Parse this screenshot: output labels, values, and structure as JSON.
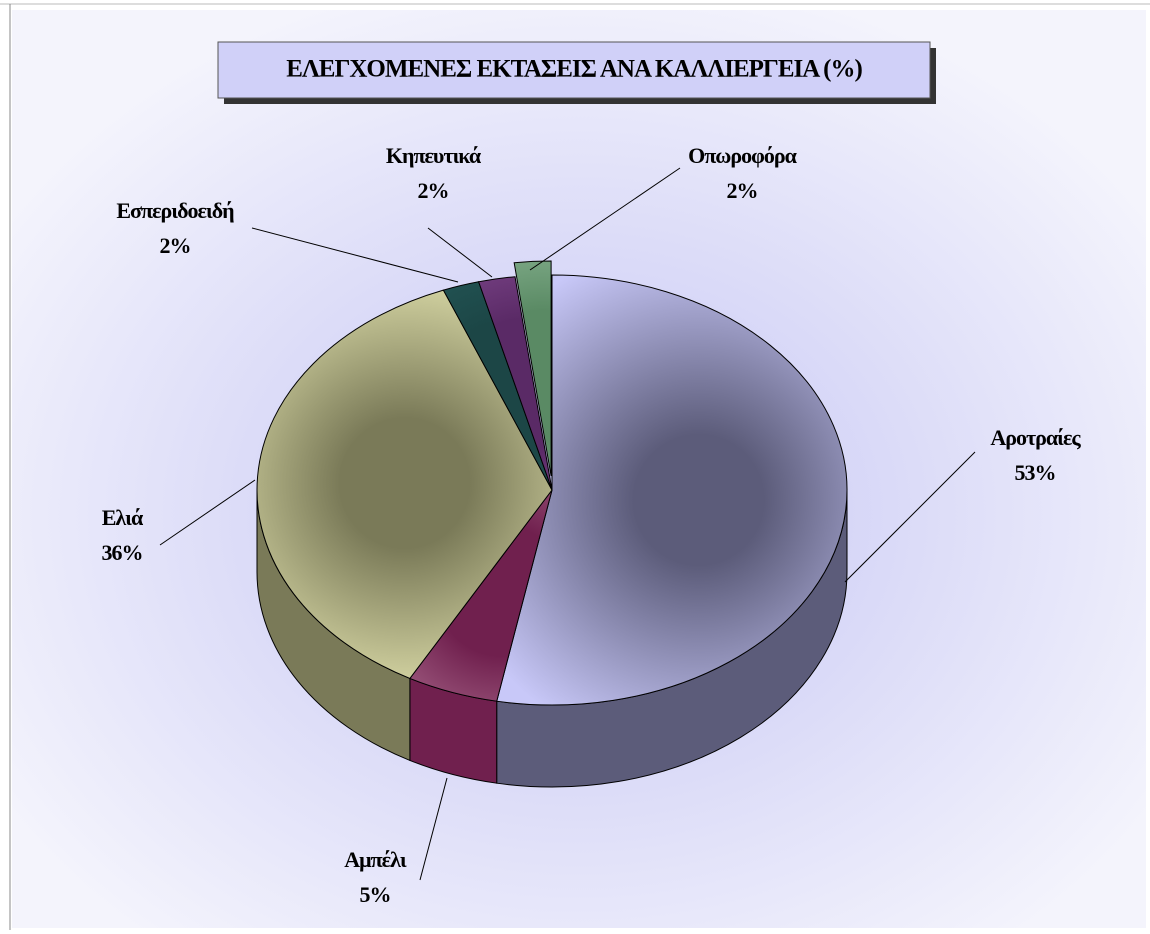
{
  "chart_data": {
    "type": "pie3d",
    "title": "ΕΛΕΓΧΟΜΕΝΕΣ ΕΚΤΑΣΕΙΣ ΑΝΑ ΚΑΛΛΙΕΡΓΕΙΑ (%)",
    "categories": [
      "Αροτραίες",
      "Αμπέλι",
      "Ελιά",
      "Εσπεριδοειδή",
      "Κηπευτικά",
      "Οπωροφόρα"
    ],
    "values": [
      53,
      5,
      36,
      2,
      2,
      2
    ],
    "value_labels": [
      "53%",
      "5%",
      "36%",
      "2%",
      "2%",
      "2%"
    ],
    "colors": [
      "#c8c8f8",
      "#e4b4cc",
      "#f8f8c0",
      "#2e6e6e",
      "#b070c0",
      "#c8ecd0"
    ],
    "side_colors": [
      "#5c5c7a",
      "#70204e",
      "#7a7a58",
      "#1c4646",
      "#5a2a66",
      "#5a8a64"
    ],
    "exploded": [
      5
    ]
  }
}
